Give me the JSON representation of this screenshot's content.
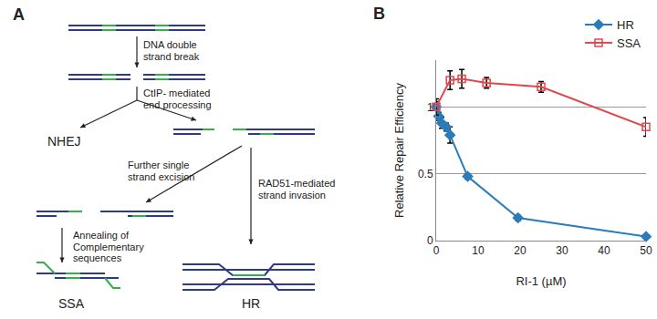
{
  "diagram": {
    "label": "A",
    "break": [
      "DNA double",
      "strand break"
    ],
    "processing": [
      "CtIP- mediated",
      "end processing"
    ],
    "nhej": "NHEJ",
    "excision": [
      "Further single",
      "strand excision"
    ],
    "invasion": [
      "RAD51-mediated",
      "strand invasion"
    ],
    "annealing": [
      "Annealing of",
      "Complementary",
      "sequences"
    ],
    "ssa": "SSA",
    "hr": "HR"
  },
  "chart_data": {
    "type": "line",
    "annotations": [
      "B"
    ],
    "x_label": "RI-1 (µM)",
    "y_label": "Relative Repair Efficiency",
    "xlim": [
      0,
      50
    ],
    "xticks": [
      0,
      10,
      20,
      30,
      40,
      50
    ],
    "ylim": [
      0,
      1.35
    ],
    "yticks": [
      0,
      0.5,
      1
    ],
    "grid": true,
    "legend": "top right",
    "series": [
      {
        "name": "HR",
        "color": "#2b7bba",
        "marker": "diamond",
        "line_style": "solid",
        "x": [
          0,
          0.6,
          1.3,
          2.4,
          3.3,
          7.5,
          19.5,
          50
        ],
        "values": [
          1.0,
          0.93,
          0.88,
          0.85,
          0.79,
          0.48,
          0.17,
          0.03
        ],
        "errors": [
          0.04,
          0.03,
          0.04,
          0.03,
          0.06,
          0.02,
          0.02,
          0.01
        ]
      },
      {
        "name": "SSA",
        "color": "#e0474c",
        "marker": "square-open",
        "line_style": "solid",
        "x": [
          0,
          3.3,
          6.1,
          12,
          25,
          50
        ],
        "values": [
          1.0,
          1.2,
          1.21,
          1.18,
          1.15,
          0.85
        ],
        "errors": [
          0.06,
          0.07,
          0.07,
          0.04,
          0.04,
          0.07
        ]
      }
    ]
  }
}
